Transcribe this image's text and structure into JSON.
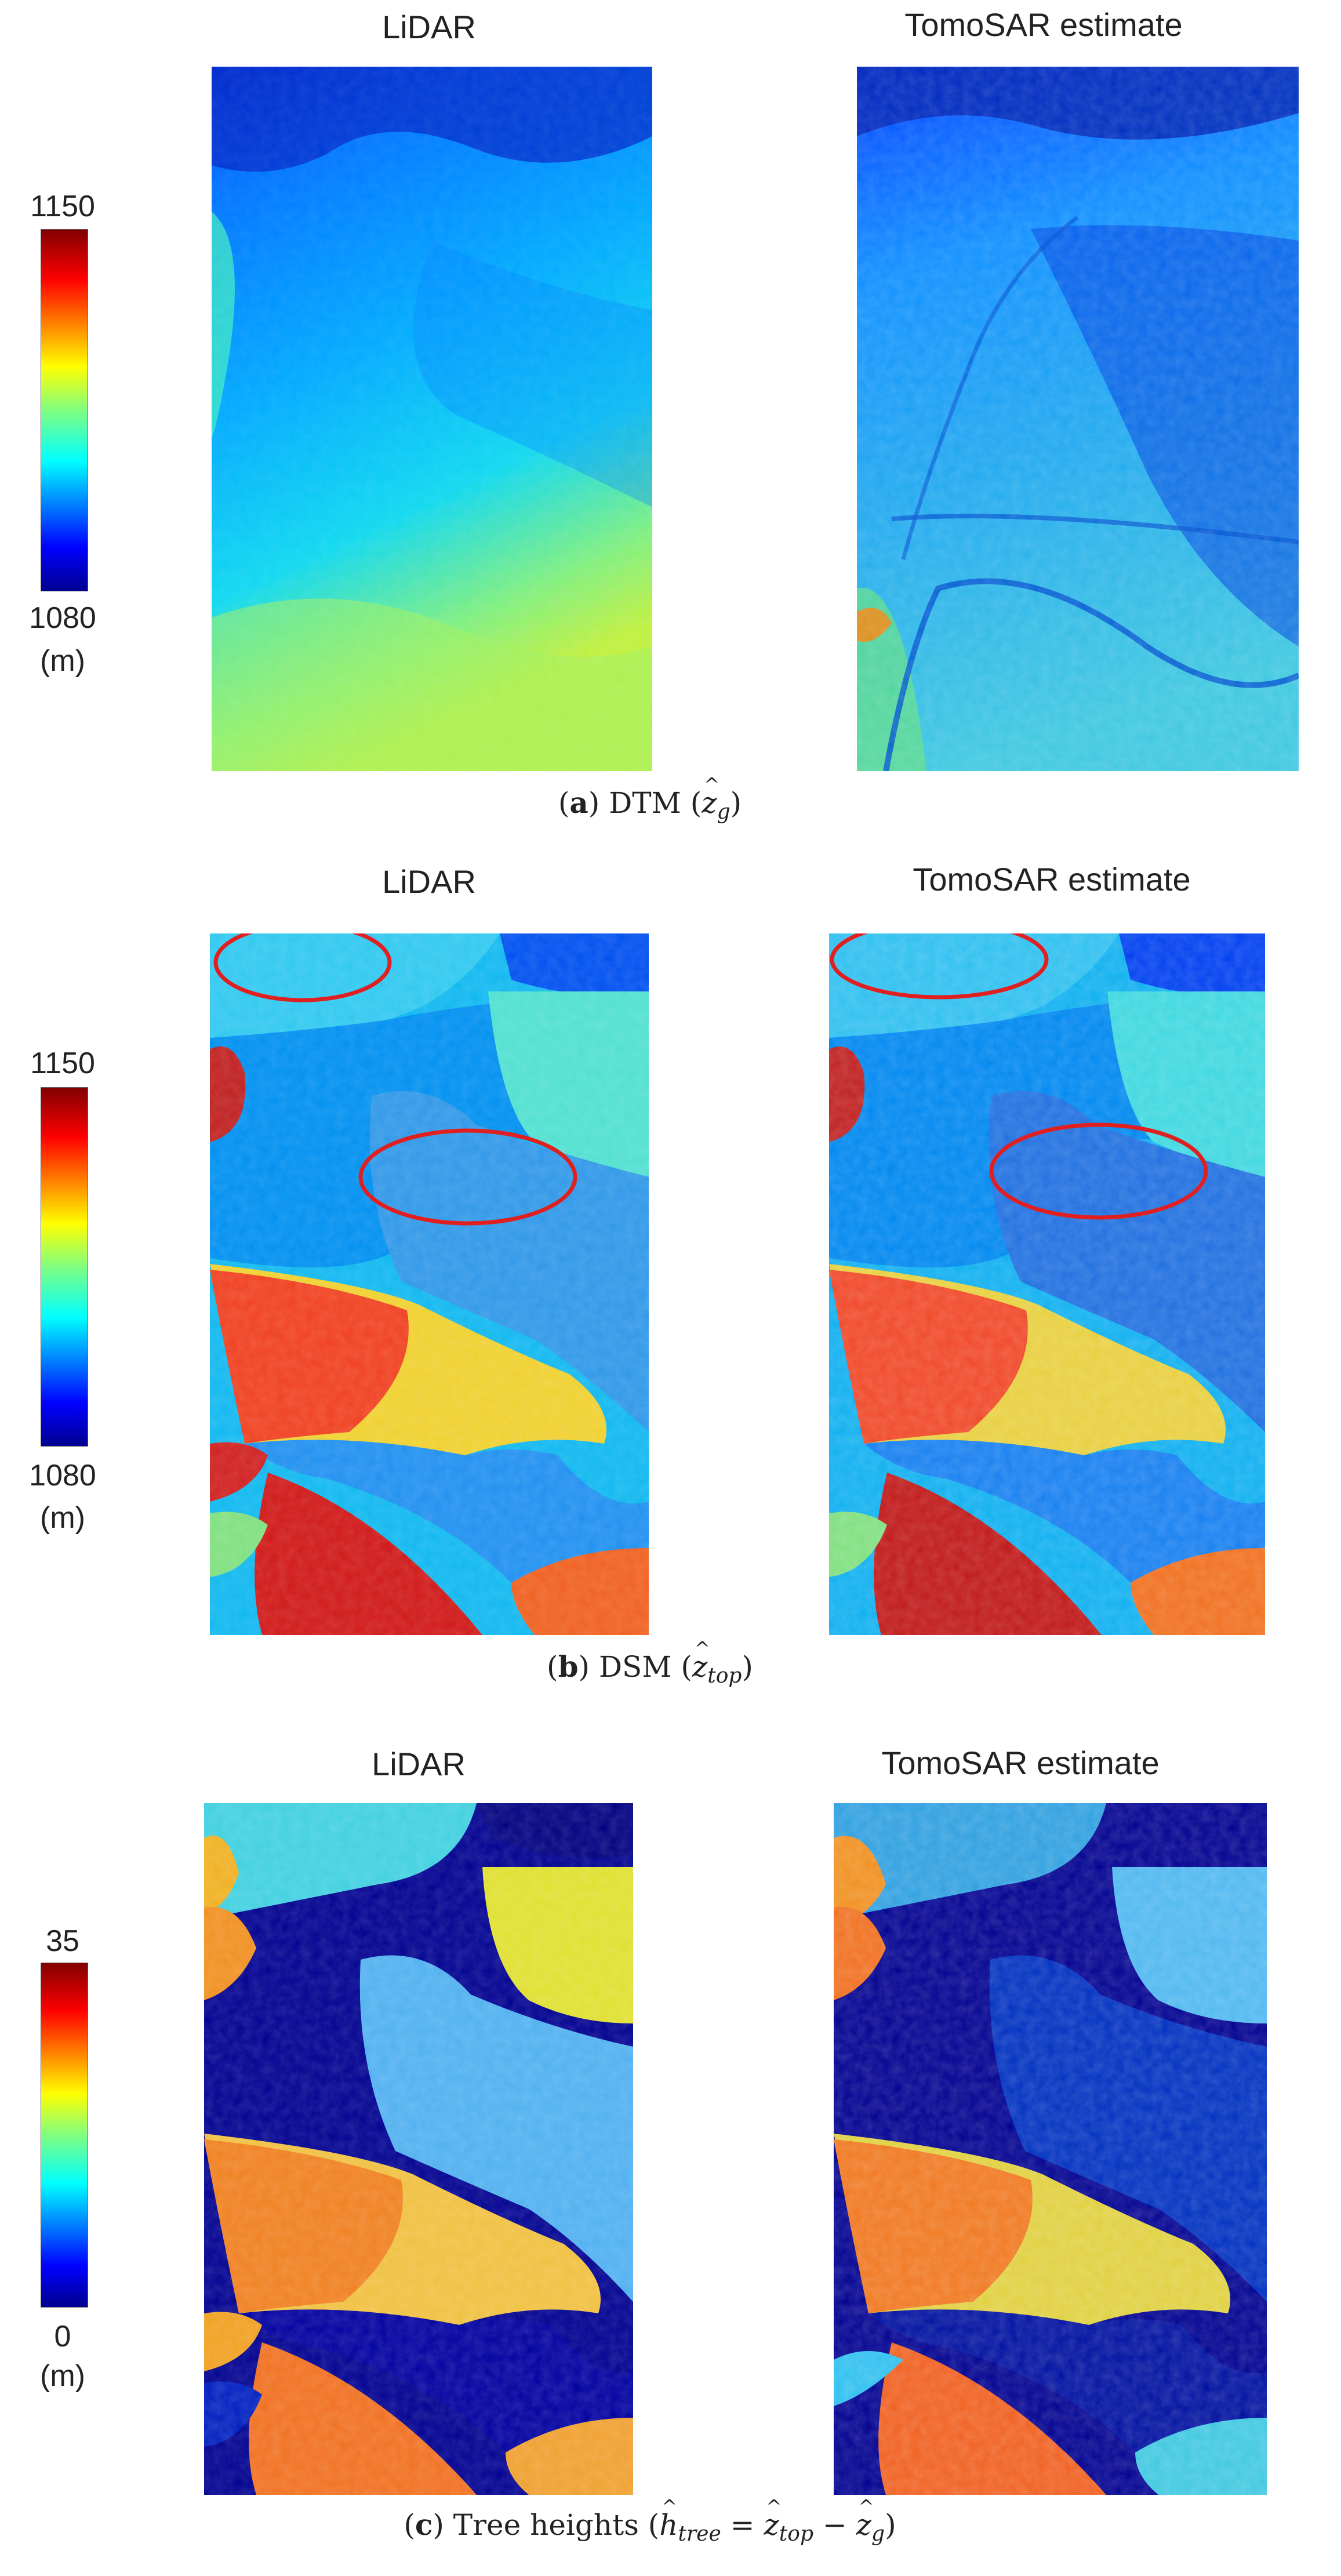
{
  "panels": [
    {
      "left_title": "LiDAR",
      "right_title": "TomoSAR estimate",
      "colorbar": {
        "max": "1150",
        "min": "1080",
        "unit": "(m)"
      },
      "caption": {
        "label": "a",
        "text": "DTM",
        "math_var": "z",
        "math_sub": "g"
      }
    },
    {
      "left_title": "LiDAR",
      "right_title": "TomoSAR estimate",
      "colorbar": {
        "max": "1150",
        "min": "1080",
        "unit": "(m)"
      },
      "caption": {
        "label": "b",
        "text": "DSM",
        "math_var": "z",
        "math_sub": "top"
      }
    },
    {
      "left_title": "LiDAR",
      "right_title": "TomoSAR estimate",
      "colorbar": {
        "max": "35",
        "min": "0",
        "unit": "(m)"
      },
      "caption": {
        "label": "c",
        "text": "Tree heights",
        "math_h": "h",
        "math_h_sub": "tree",
        "math_top": "z",
        "math_top_sub": "top",
        "math_g": "z",
        "math_g_sub": "g"
      }
    }
  ],
  "colormap": [
    "#00008f",
    "#0000ff",
    "#0080ff",
    "#00ffff",
    "#80ff80",
    "#ffff00",
    "#ff8000",
    "#ff0000",
    "#800000"
  ]
}
